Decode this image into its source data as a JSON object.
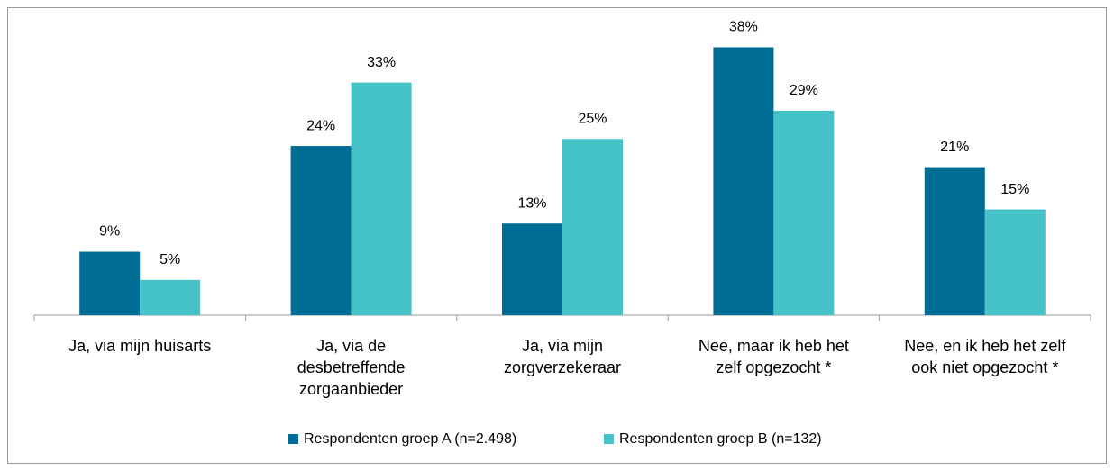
{
  "chart_data": {
    "type": "bar",
    "categories": [
      "Ja, via mijn huisarts",
      "Ja, via de\ndesbetreffende\nzorgaanbieder",
      "Ja, via mijn\nzorgverzekeraar",
      "Nee, maar ik heb het\nzelf opgezocht *",
      "Nee, en ik heb het zelf\nook niet opgezocht *"
    ],
    "series": [
      {
        "name": "Respondenten groep A (n=2.498)",
        "color": "#006d95",
        "values": [
          9,
          24,
          13,
          38,
          21
        ],
        "value_labels": [
          "9%",
          "24%",
          "13%",
          "38%",
          "21%"
        ]
      },
      {
        "name": "Respondenten groep B (n=132)",
        "color": "#45c3c8",
        "values": [
          5,
          33,
          25,
          29,
          15
        ],
        "value_labels": [
          "5%",
          "33%",
          "25%",
          "29%",
          "15%"
        ]
      }
    ],
    "legend": "bottom"
  }
}
